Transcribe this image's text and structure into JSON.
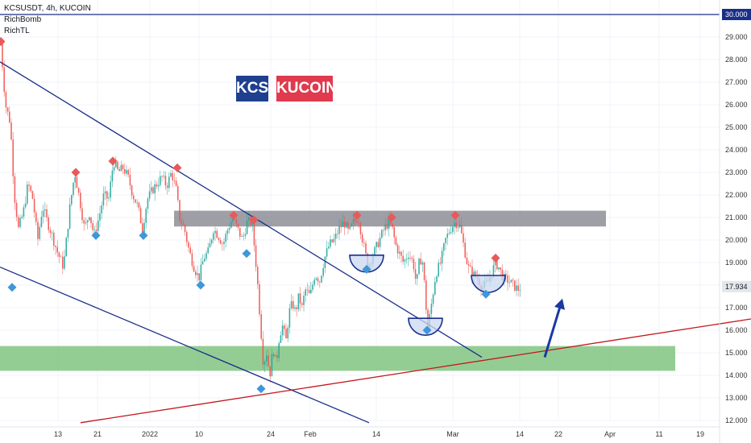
{
  "legend": {
    "symbol": "KCSUSDT, 4h, KUCOIN",
    "indicator_1": "RichBomb",
    "indicator_2": "RichTL"
  },
  "badges": {
    "kcs": "KCS",
    "kucoin": "KUCOIN"
  },
  "colors": {
    "up": "#26a69a",
    "down": "#ef5350",
    "resistance_zone": "#7f7f88",
    "support_zone": "#66b866",
    "trendline_blue": "#1a2f8a",
    "trendline_red": "#c4161c",
    "marker_red": "#e85a5a",
    "marker_blue": "#3d97d9",
    "badge_kcs": "#1f3f8f",
    "badge_kucoin": "#e03a4e",
    "arrow": "#1a3aa0"
  },
  "chart_data": {
    "type": "candlestick",
    "title": "KCSUSDT, 4h, KUCOIN",
    "y_axis": {
      "min": 12.0,
      "max": 30.0,
      "ticks": [
        "12.000",
        "13.000",
        "14.000",
        "15.000",
        "16.000",
        "17.000",
        "18.000",
        "19.000",
        "20.000",
        "21.000",
        "22.000",
        "23.000",
        "24.000",
        "25.000",
        "26.000",
        "27.000",
        "28.000",
        "29.000"
      ]
    },
    "x_axis": {
      "ticks": [
        "13",
        "21",
        "2022",
        "10",
        "24",
        "Feb",
        "14",
        "Mar",
        "14",
        "22",
        "Apr",
        "11",
        "19"
      ]
    },
    "price_labels": {
      "top_line": "30.000",
      "last_price": "17.934"
    },
    "last_price": 17.934,
    "horizontal_line": 30.0,
    "price_path": [
      [
        0,
        28.8
      ],
      [
        6,
        26.0
      ],
      [
        12,
        25.2
      ],
      [
        17,
        22.0
      ],
      [
        22,
        20.5
      ],
      [
        28,
        21.2
      ],
      [
        34,
        22.5
      ],
      [
        40,
        21.8
      ],
      [
        46,
        20.0
      ],
      [
        52,
        21.5
      ],
      [
        58,
        20.8
      ],
      [
        64,
        20.2
      ],
      [
        70,
        19.5
      ],
      [
        78,
        18.8
      ],
      [
        86,
        21.5
      ],
      [
        92,
        23.0
      ],
      [
        98,
        21.8
      ],
      [
        104,
        20.5
      ],
      [
        110,
        21.2
      ],
      [
        116,
        20.2
      ],
      [
        122,
        21.0
      ],
      [
        128,
        22.0
      ],
      [
        134,
        21.8
      ],
      [
        140,
        23.5
      ],
      [
        146,
        23.0
      ],
      [
        152,
        23.2
      ],
      [
        158,
        22.8
      ],
      [
        164,
        22.0
      ],
      [
        170,
        21.5
      ],
      [
        176,
        20.5
      ],
      [
        182,
        21.8
      ],
      [
        188,
        22.2
      ],
      [
        194,
        22.5
      ],
      [
        200,
        22.8
      ],
      [
        206,
        22.4
      ],
      [
        212,
        23.0
      ],
      [
        218,
        22.2
      ],
      [
        222,
        21.0
      ],
      [
        228,
        20.5
      ],
      [
        234,
        19.5
      ],
      [
        240,
        18.8
      ],
      [
        246,
        18.3
      ],
      [
        252,
        19.2
      ],
      [
        258,
        19.5
      ],
      [
        264,
        20.5
      ],
      [
        270,
        20.2
      ],
      [
        276,
        19.8
      ],
      [
        282,
        20.5
      ],
      [
        288,
        21.0
      ],
      [
        294,
        20.5
      ],
      [
        300,
        20.0
      ],
      [
        306,
        20.8
      ],
      [
        312,
        20.8
      ],
      [
        318,
        18.5
      ],
      [
        322,
        16.5
      ],
      [
        326,
        14.5
      ],
      [
        330,
        15.0
      ],
      [
        334,
        14.0
      ],
      [
        338,
        15.2
      ],
      [
        342,
        14.5
      ],
      [
        346,
        15.8
      ],
      [
        350,
        16.2
      ],
      [
        354,
        15.5
      ],
      [
        358,
        16.8
      ],
      [
        362,
        17.2
      ],
      [
        366,
        16.8
      ],
      [
        370,
        17.5
      ],
      [
        374,
        17.0
      ],
      [
        378,
        17.8
      ],
      [
        384,
        17.5
      ],
      [
        390,
        18.5
      ],
      [
        396,
        18.2
      ],
      [
        402,
        19.2
      ],
      [
        408,
        19.8
      ],
      [
        414,
        20.0
      ],
      [
        420,
        20.5
      ],
      [
        426,
        20.8
      ],
      [
        432,
        20.3
      ],
      [
        438,
        20.8
      ],
      [
        444,
        21.0
      ],
      [
        448,
        20.2
      ],
      [
        452,
        19.5
      ],
      [
        456,
        18.8
      ],
      [
        460,
        19.2
      ],
      [
        464,
        19.5
      ],
      [
        470,
        20.0
      ],
      [
        476,
        20.5
      ],
      [
        482,
        20.8
      ],
      [
        486,
        20.5
      ],
      [
        490,
        19.8
      ],
      [
        496,
        19.3
      ],
      [
        500,
        19.0
      ],
      [
        506,
        19.4
      ],
      [
        512,
        19.0
      ],
      [
        516,
        18.0
      ],
      [
        520,
        19.2
      ],
      [
        524,
        19.0
      ],
      [
        528,
        17.0
      ],
      [
        530,
        16.0
      ],
      [
        534,
        17.0
      ],
      [
        540,
        18.5
      ],
      [
        546,
        19.0
      ],
      [
        552,
        20.0
      ],
      [
        558,
        20.5
      ],
      [
        564,
        20.8
      ],
      [
        570,
        20.6
      ],
      [
        576,
        19.5
      ],
      [
        580,
        18.8
      ],
      [
        586,
        18.5
      ],
      [
        592,
        18.3
      ],
      [
        598,
        17.9
      ],
      [
        604,
        18.1
      ],
      [
        610,
        18.6
      ],
      [
        614,
        19.0
      ],
      [
        618,
        18.8
      ],
      [
        624,
        18.3
      ],
      [
        630,
        18.2
      ],
      [
        636,
        18.0
      ],
      [
        642,
        17.8
      ],
      [
        646,
        17.934
      ]
    ],
    "zones": [
      {
        "name": "resistance",
        "x_start": 216,
        "x_end": 752,
        "y_low": 20.6,
        "y_high": 21.3
      },
      {
        "name": "support",
        "x_start": 0,
        "x_end": 838,
        "y_low": 14.2,
        "y_high": 15.3
      }
    ],
    "trendlines": [
      {
        "name": "descending-upper",
        "color": "#1a2f8a",
        "from": [
          0,
          27.9
        ],
        "to": [
          598,
          14.8
        ]
      },
      {
        "name": "descending-lower",
        "color": "#1a2f8a",
        "from": [
          0,
          18.8
        ],
        "to": [
          458,
          11.9
        ]
      },
      {
        "name": "ascending-support",
        "color": "#c4161c",
        "from": [
          100,
          11.9
        ],
        "to": [
          932,
          16.5
        ]
      }
    ],
    "sell_markers": [
      [
        1,
        28.8
      ],
      [
        94,
        23.0
      ],
      [
        140,
        23.5
      ],
      [
        220,
        23.2
      ],
      [
        290,
        21.1
      ],
      [
        315,
        20.9
      ],
      [
        443,
        21.1
      ],
      [
        486,
        21.0
      ],
      [
        565,
        21.1
      ],
      [
        615,
        19.2
      ]
    ],
    "buy_markers": [
      [
        15,
        17.9
      ],
      [
        119,
        20.2
      ],
      [
        178,
        20.2
      ],
      [
        249,
        18.0
      ],
      [
        306,
        19.4
      ],
      [
        324,
        13.4
      ],
      [
        455,
        18.7
      ],
      [
        530,
        16.0
      ],
      [
        603,
        17.6
      ]
    ],
    "bowls": [
      [
        455,
        18.9
      ],
      [
        528,
        16.1
      ],
      [
        606,
        18.0
      ]
    ],
    "arrow": {
      "from": [
        676,
        14.8
      ],
      "to": [
        698,
        17.4
      ]
    }
  }
}
